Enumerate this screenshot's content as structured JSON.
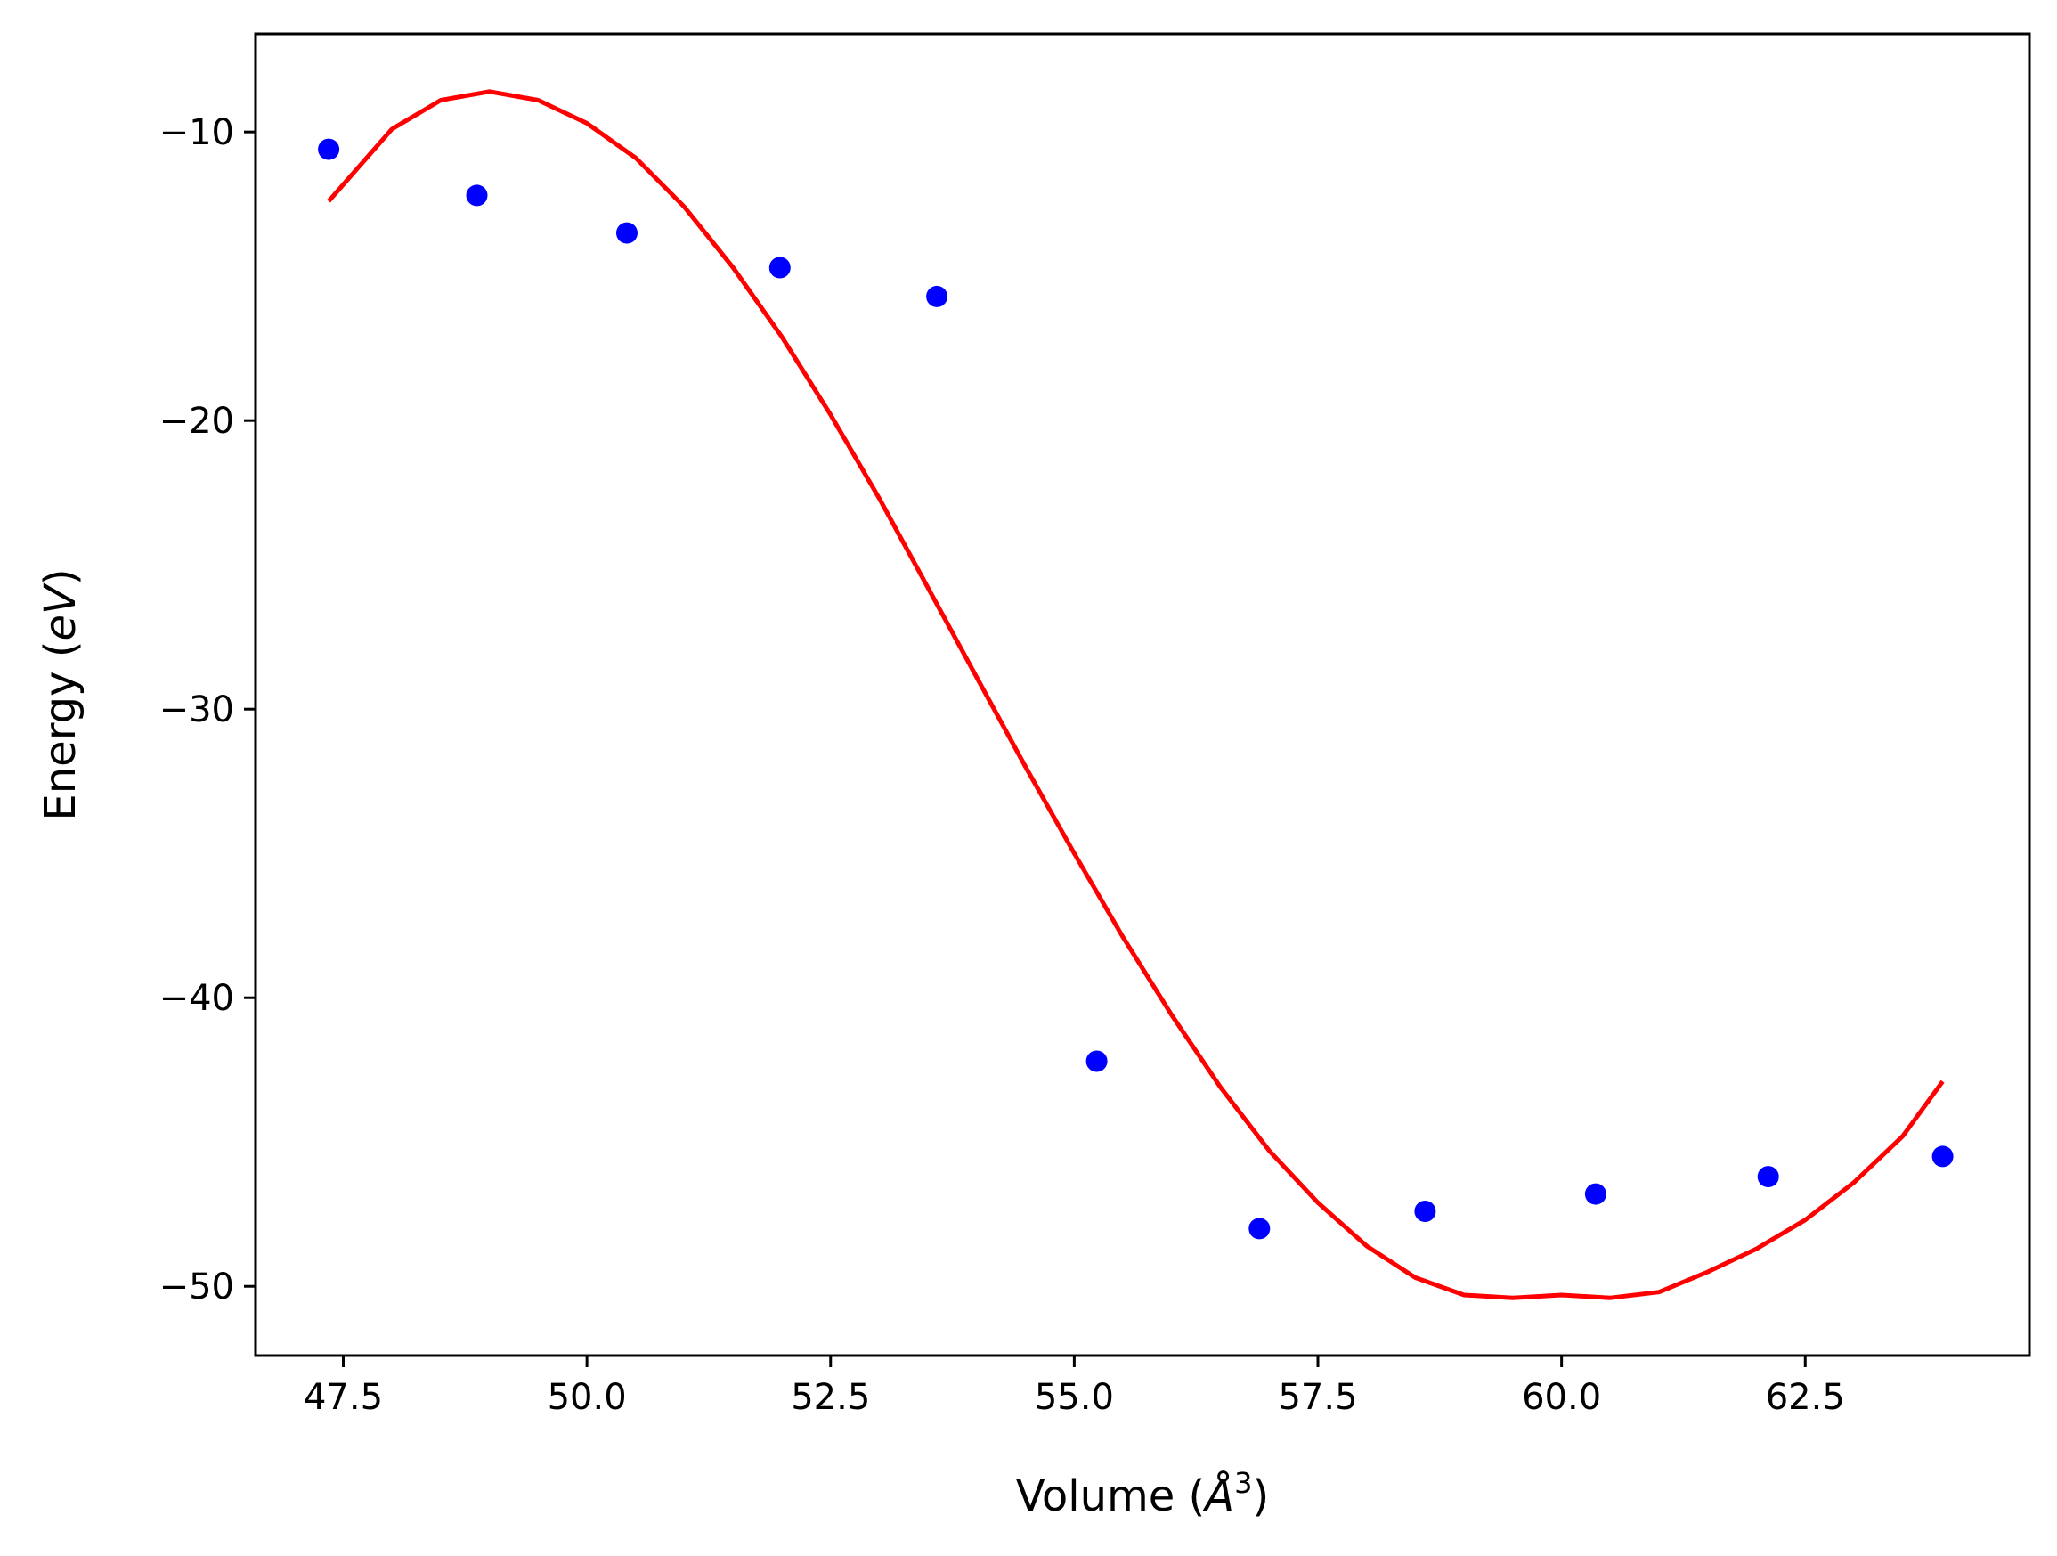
{
  "chart_data": {
    "type": "scatter",
    "xlabel": "Volume",
    "xlabel_unit": "Å",
    "xlabel_unit_exponent": "3",
    "ylabel": "Energy",
    "ylabel_unit": "eV",
    "xlim": [
      46.6,
      64.8
    ],
    "ylim": [
      -52.4,
      -6.6
    ],
    "x_ticks": [
      47.5,
      50.0,
      52.5,
      55.0,
      57.5,
      60.0,
      62.5
    ],
    "x_tick_labels": [
      "47.5",
      "50.0",
      "52.5",
      "55.0",
      "57.5",
      "60.0",
      "62.5"
    ],
    "y_ticks": [
      -10,
      -20,
      -30,
      -40,
      -50
    ],
    "y_tick_labels": [
      "−10",
      "−20",
      "−30",
      "−40",
      "−50"
    ],
    "grid": false,
    "legend": "none",
    "series": [
      {
        "kind": "scatter",
        "color": "#0000ff",
        "x": [
          47.35,
          48.87,
          50.41,
          51.98,
          53.59,
          55.23,
          56.9,
          58.6,
          60.35,
          62.12,
          63.91
        ],
        "y": [
          -10.6,
          -12.2,
          -13.5,
          -14.7,
          -15.7,
          -42.2,
          -48.0,
          -47.4,
          -46.8,
          -46.2,
          -45.5
        ]
      },
      {
        "kind": "line",
        "color": "#ff0000",
        "x": [
          47.35,
          48.0,
          48.5,
          49.0,
          49.5,
          50.0,
          50.5,
          51.0,
          51.5,
          52.0,
          52.5,
          53.0,
          53.5,
          54.0,
          54.5,
          55.0,
          55.5,
          56.0,
          56.5,
          57.0,
          57.5,
          58.0,
          58.5,
          59.0,
          59.5,
          60.0,
          60.5,
          61.0,
          61.5,
          62.0,
          62.5,
          63.0,
          63.5,
          63.91
        ],
        "y": [
          -12.4,
          -9.9,
          -8.9,
          -8.6,
          -8.9,
          -9.7,
          -10.9,
          -12.6,
          -14.7,
          -17.1,
          -19.8,
          -22.7,
          -25.8,
          -28.9,
          -32.0,
          -35.0,
          -37.9,
          -40.6,
          -43.1,
          -45.3,
          -47.1,
          -48.6,
          -49.7,
          -50.3,
          -50.4,
          -50.3,
          -50.4,
          -50.2,
          -49.5,
          -48.7,
          -47.7,
          -46.4,
          -44.8,
          -42.9
        ]
      }
    ]
  }
}
